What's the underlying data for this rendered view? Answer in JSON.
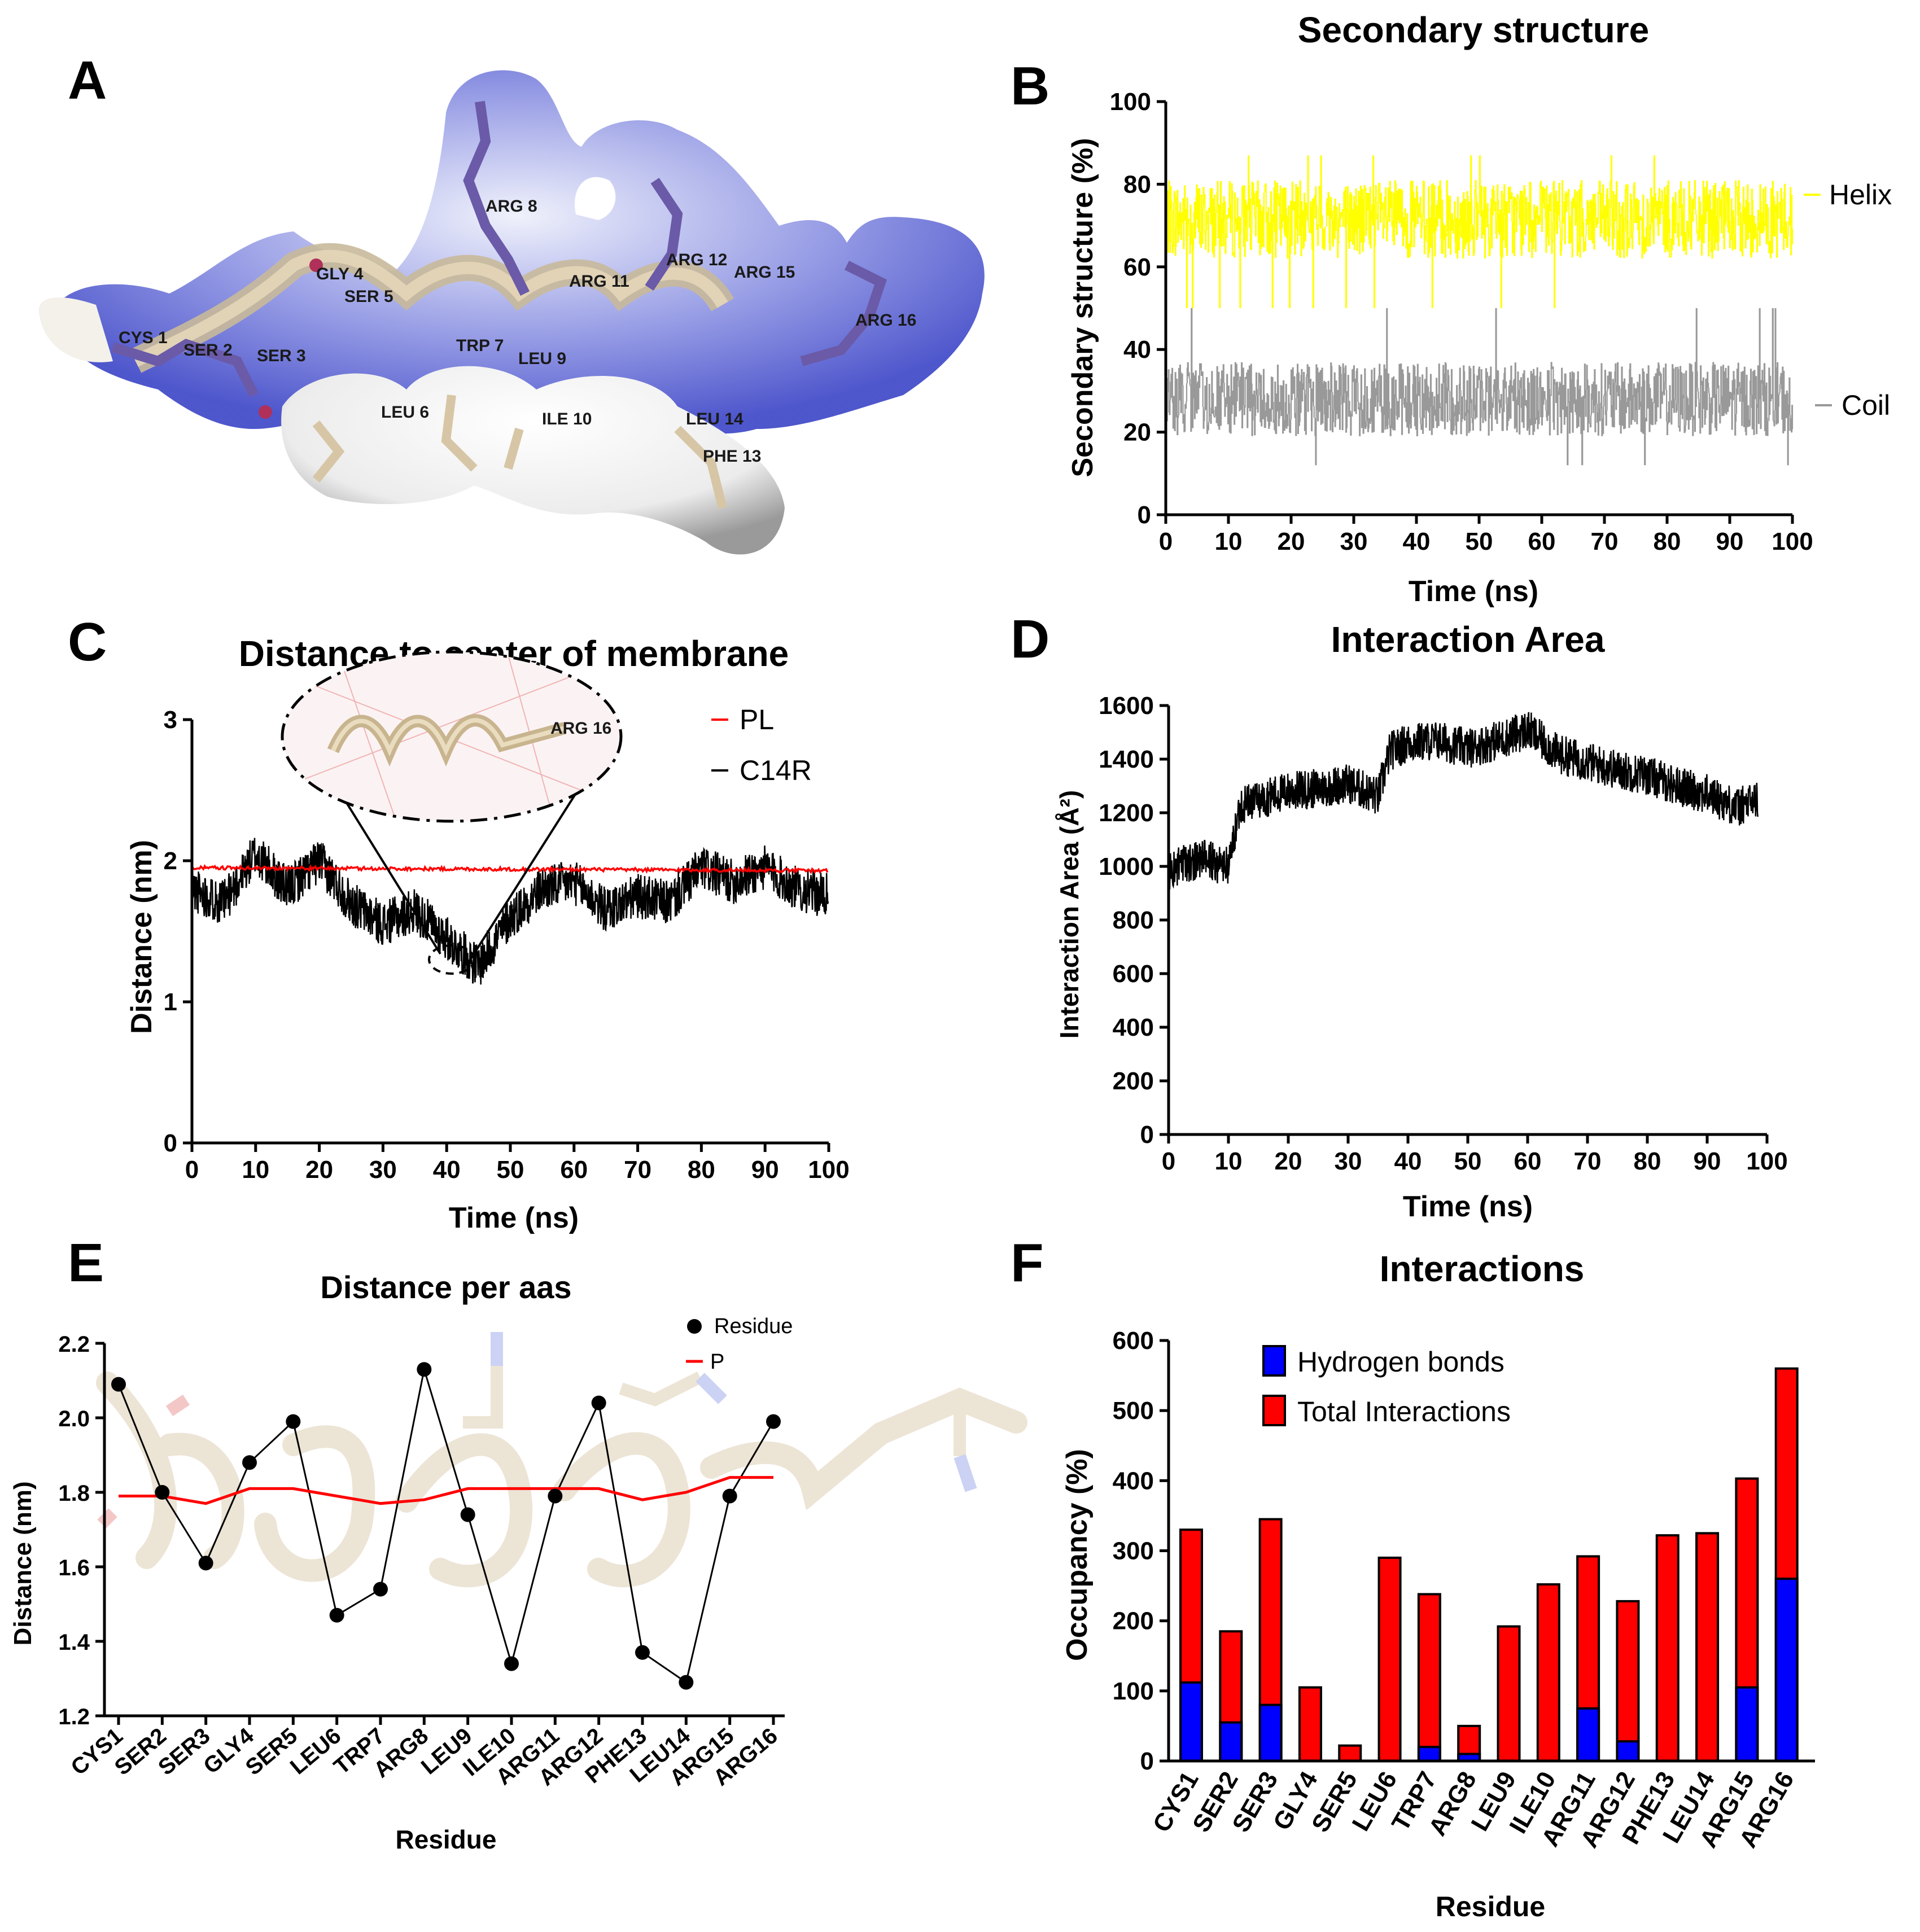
{
  "panels": {
    "A": {
      "label": "A",
      "residue_labels": [
        "CYS 1",
        "SER 2",
        "SER 3",
        "GLY 4",
        "SER 5",
        "LEU 6",
        "TRP 7",
        "ARG 8",
        "LEU 9",
        "ILE 10",
        "ARG 11",
        "ARG 12",
        "PHE 13",
        "LEU 14",
        "ARG 15",
        "ARG 16"
      ]
    },
    "B": {
      "label": "B"
    },
    "C": {
      "label": "C",
      "inset_label": "ARG 16"
    },
    "D": {
      "label": "D"
    },
    "E": {
      "label": "E"
    },
    "F": {
      "label": "F"
    }
  },
  "colors": {
    "helix": "#ffff00",
    "coil": "#999999",
    "pl": "#ff0000",
    "c14r": "#000000",
    "hbond": "#0000ff",
    "total": "#ff0000"
  },
  "chart_data": [
    {
      "id": "B",
      "type": "line",
      "title": "Secondary structure",
      "xlabel": "Time (ns)",
      "ylabel": "Secondary structure (%)",
      "xlim": [
        0,
        100
      ],
      "ylim": [
        0,
        100
      ],
      "xticks": [
        0,
        10,
        20,
        30,
        40,
        50,
        60,
        70,
        80,
        90,
        100
      ],
      "yticks": [
        0,
        20,
        40,
        60,
        80,
        100
      ],
      "series": [
        {
          "name": "Helix",
          "mean": 72,
          "range": [
            62,
            81
          ],
          "spikes": [
            50,
            87
          ]
        },
        {
          "name": "Coil",
          "mean": 25,
          "range": [
            19,
            37
          ],
          "spikes": [
            12,
            50
          ]
        }
      ]
    },
    {
      "id": "C",
      "type": "line",
      "title": "Distance to center of membrane",
      "xlabel": "Time (ns)",
      "ylabel": "Distance (nm)",
      "xlim": [
        0,
        100
      ],
      "ylim": [
        0,
        3
      ],
      "xticks": [
        0,
        10,
        20,
        30,
        40,
        50,
        60,
        70,
        80,
        90,
        100
      ],
      "yticks": [
        0,
        1,
        2,
        3
      ],
      "series": [
        {
          "name": "PL",
          "x": [
            0,
            100
          ],
          "values": [
            1.95,
            1.93
          ]
        },
        {
          "name": "C14R",
          "x": [
            0,
            5,
            10,
            15,
            20,
            25,
            30,
            35,
            40,
            45,
            50,
            55,
            60,
            65,
            70,
            75,
            80,
            85,
            90,
            95,
            100
          ],
          "values": [
            1.8,
            1.7,
            2.05,
            1.8,
            2.0,
            1.7,
            1.55,
            1.65,
            1.45,
            1.25,
            1.6,
            1.8,
            1.85,
            1.65,
            1.75,
            1.7,
            1.95,
            1.85,
            1.95,
            1.8,
            1.75
          ]
        }
      ]
    },
    {
      "id": "D",
      "type": "line",
      "title": "Interaction Area",
      "xlabel": "Time (ns)",
      "ylabel": "Interaction Area (Å²)",
      "xlim": [
        0,
        100
      ],
      "ylim": [
        0,
        1600
      ],
      "xticks": [
        0,
        10,
        20,
        30,
        40,
        50,
        60,
        70,
        80,
        90,
        100
      ],
      "yticks": [
        0,
        200,
        400,
        600,
        800,
        1000,
        1200,
        1400,
        1600
      ],
      "series": [
        {
          "name": "Interaction Area",
          "x": [
            0,
            5,
            10,
            12,
            15,
            20,
            25,
            30,
            35,
            37,
            40,
            45,
            50,
            55,
            60,
            65,
            70,
            75,
            80,
            85,
            90,
            95,
            100
          ],
          "values": [
            980,
            1030,
            1000,
            1230,
            1250,
            1280,
            1290,
            1310,
            1260,
            1430,
            1460,
            1470,
            1440,
            1470,
            1510,
            1420,
            1390,
            1360,
            1340,
            1300,
            1270,
            1220,
            1260
          ]
        }
      ]
    },
    {
      "id": "E",
      "type": "line",
      "title": "Distance per aas",
      "xlabel": "Residue",
      "ylabel": "Distance (nm)",
      "ylim": [
        1.2,
        2.2
      ],
      "yticks": [
        "1.2",
        "1.4",
        "1.6",
        "1.8",
        "2.0",
        "2.2"
      ],
      "categories": [
        "CYS1",
        "SER2",
        "SER3",
        "GLY4",
        "SER5",
        "LEU6",
        "TRP7",
        "ARG8",
        "LEU9",
        "ILE10",
        "ARG11",
        "ARG12",
        "PHE13",
        "LEU14",
        "ARG15",
        "ARG16"
      ],
      "series": [
        {
          "name": "Residue",
          "values": [
            2.09,
            1.8,
            1.61,
            1.88,
            1.99,
            1.47,
            1.54,
            2.13,
            1.74,
            1.34,
            1.79,
            2.04,
            1.37,
            1.29,
            1.79,
            1.99
          ]
        },
        {
          "name": "P",
          "values": [
            1.79,
            1.79,
            1.77,
            1.81,
            1.81,
            1.79,
            1.77,
            1.78,
            1.81,
            1.81,
            1.81,
            1.81,
            1.78,
            1.8,
            1.84,
            1.84
          ]
        }
      ]
    },
    {
      "id": "F",
      "type": "bar",
      "title": "Interactions",
      "xlabel": "Residue",
      "ylabel": "Occupancy (%)",
      "ylim": [
        0,
        600
      ],
      "yticks": [
        0,
        100,
        200,
        300,
        400,
        500,
        600
      ],
      "categories": [
        "CYS1",
        "SER2",
        "SER3",
        "GLY4",
        "SER5",
        "LEU6",
        "TRP7",
        "ARG8",
        "LEU9",
        "ILE10",
        "ARG11",
        "ARG12",
        "PHE13",
        "LEU14",
        "ARG15",
        "ARG16"
      ],
      "series": [
        {
          "name": "Hydrogen bonds",
          "values": [
            112,
            55,
            80,
            0,
            0,
            0,
            20,
            10,
            0,
            0,
            75,
            28,
            0,
            0,
            105,
            260
          ]
        },
        {
          "name": "Total Interactions",
          "values": [
            330,
            185,
            345,
            105,
            22,
            290,
            238,
            50,
            192,
            252,
            292,
            228,
            322,
            325,
            403,
            560
          ]
        }
      ]
    }
  ]
}
